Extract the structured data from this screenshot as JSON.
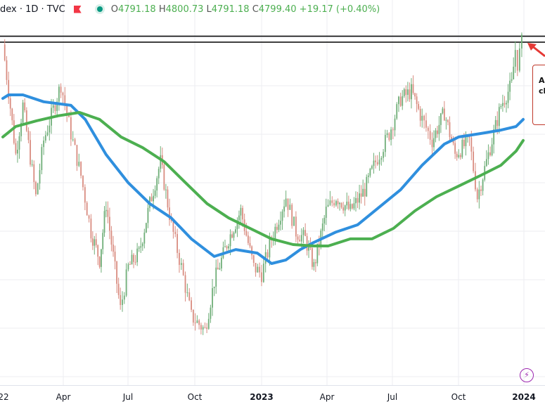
{
  "header": {
    "title": "dex · 1D · TVC",
    "open_label": "O",
    "open": "4791.18",
    "high_label": "H",
    "high": "4800.73",
    "low_label": "L",
    "low": "4791.18",
    "close_label": "C",
    "close": "4799.40",
    "change": "+19.17 (+0.40%)"
  },
  "annotation": {
    "line1": "Al",
    "line2": "cl"
  },
  "colors": {
    "up": "#6fae78",
    "down": "#d98c80",
    "ma_blue": "#2f8fde",
    "ma_green": "#4caf50",
    "annotation": "#c0392b",
    "level_line": "#000000"
  },
  "chart_data": {
    "type": "line",
    "title": "",
    "xlabel": "",
    "ylabel": "",
    "grid": true,
    "x_tick_labels": [
      "22",
      "Apr",
      "Jul",
      "Oct",
      "2023",
      "Apr",
      "Jul",
      "Oct",
      "2024"
    ],
    "ylim": [
      3400,
      4830
    ],
    "horizontal_levels": [
      4800,
      4825
    ],
    "series": [
      {
        "kind": "candles-close",
        "color": "#6fae78",
        "points": [
          [
            "2022-01-03",
            4790
          ],
          [
            "2022-01-11",
            4593
          ],
          [
            "2022-01-21",
            4327
          ],
          [
            "2022-01-31",
            4534
          ],
          [
            "2022-02-18",
            4149
          ],
          [
            "2022-03-01",
            4386
          ],
          [
            "2022-03-25",
            4622
          ],
          [
            "2022-04-08",
            4415
          ],
          [
            "2022-04-22",
            4238
          ],
          [
            "2022-05-06",
            4001
          ],
          [
            "2022-05-18",
            3883
          ],
          [
            "2022-05-27",
            4120
          ],
          [
            "2022-06-16",
            3676
          ],
          [
            "2022-06-27",
            3853
          ],
          [
            "2022-07-12",
            3912
          ],
          [
            "2022-07-27",
            4120
          ],
          [
            "2022-08-11",
            4297
          ],
          [
            "2022-08-26",
            4031
          ],
          [
            "2022-09-09",
            3853
          ],
          [
            "2022-09-23",
            3646
          ],
          [
            "2022-10-12",
            3587
          ],
          [
            "2022-10-25",
            3794
          ],
          [
            "2022-11-14",
            3972
          ],
          [
            "2022-12-01",
            4090
          ],
          [
            "2022-12-19",
            3853
          ],
          [
            "2022-12-30",
            3824
          ],
          [
            "2023-01-13",
            3972
          ],
          [
            "2023-02-02",
            4149
          ],
          [
            "2023-02-16",
            4001
          ],
          [
            "2023-03-01",
            3972
          ],
          [
            "2023-03-13",
            3853
          ],
          [
            "2023-03-30",
            4090
          ],
          [
            "2023-04-13",
            4149
          ],
          [
            "2023-05-03",
            4090
          ],
          [
            "2023-05-23",
            4179
          ],
          [
            "2023-06-07",
            4297
          ],
          [
            "2023-06-26",
            4415
          ],
          [
            "2023-07-12",
            4562
          ],
          [
            "2023-07-27",
            4593
          ],
          [
            "2023-08-11",
            4475
          ],
          [
            "2023-08-25",
            4386
          ],
          [
            "2023-09-11",
            4504
          ],
          [
            "2023-09-26",
            4327
          ],
          [
            "2023-10-16",
            4386
          ],
          [
            "2023-10-27",
            4149
          ],
          [
            "2023-11-14",
            4357
          ],
          [
            "2023-11-29",
            4534
          ],
          [
            "2023-12-14",
            4622
          ],
          [
            "2023-12-19",
            4770
          ],
          [
            "2023-12-22",
            4710
          ],
          [
            "2023-12-28",
            4799
          ]
        ]
      },
      {
        "kind": "ma",
        "color": "#2f8fde",
        "points": [
          [
            "2022-01-03",
            4563
          ],
          [
            "2022-01-11",
            4578
          ],
          [
            "2022-01-31",
            4578
          ],
          [
            "2022-03-01",
            4549
          ],
          [
            "2022-04-08",
            4534
          ],
          [
            "2022-04-28",
            4475
          ],
          [
            "2022-05-27",
            4327
          ],
          [
            "2022-06-27",
            4208
          ],
          [
            "2022-07-27",
            4120
          ],
          [
            "2022-08-26",
            4060
          ],
          [
            "2022-09-23",
            3972
          ],
          [
            "2022-10-25",
            3898
          ],
          [
            "2022-11-24",
            3927
          ],
          [
            "2022-12-24",
            3912
          ],
          [
            "2023-01-13",
            3868
          ],
          [
            "2023-02-02",
            3883
          ],
          [
            "2023-02-22",
            3927
          ],
          [
            "2023-03-13",
            3957
          ],
          [
            "2023-04-13",
            4001
          ],
          [
            "2023-05-13",
            4031
          ],
          [
            "2023-06-12",
            4105
          ],
          [
            "2023-07-12",
            4179
          ],
          [
            "2023-08-11",
            4282
          ],
          [
            "2023-09-11",
            4371
          ],
          [
            "2023-10-01",
            4401
          ],
          [
            "2023-10-31",
            4415
          ],
          [
            "2023-11-29",
            4430
          ],
          [
            "2023-12-20",
            4445
          ],
          [
            "2023-12-30",
            4475
          ]
        ]
      },
      {
        "kind": "ma",
        "color": "#4caf50",
        "points": [
          [
            "2022-01-03",
            4401
          ],
          [
            "2022-01-21",
            4445
          ],
          [
            "2022-02-19",
            4469
          ],
          [
            "2022-03-21",
            4490
          ],
          [
            "2022-04-20",
            4504
          ],
          [
            "2022-05-18",
            4475
          ],
          [
            "2022-06-17",
            4401
          ],
          [
            "2022-07-17",
            4356
          ],
          [
            "2022-08-16",
            4297
          ],
          [
            "2022-09-15",
            4208
          ],
          [
            "2022-10-15",
            4120
          ],
          [
            "2022-11-14",
            4060
          ],
          [
            "2022-12-14",
            4016
          ],
          [
            "2023-01-13",
            3972
          ],
          [
            "2023-02-12",
            3948
          ],
          [
            "2023-03-13",
            3942
          ],
          [
            "2023-04-02",
            3942
          ],
          [
            "2023-05-03",
            3972
          ],
          [
            "2023-06-02",
            3972
          ],
          [
            "2023-07-02",
            4016
          ],
          [
            "2023-08-01",
            4090
          ],
          [
            "2023-08-31",
            4149
          ],
          [
            "2023-10-01",
            4194
          ],
          [
            "2023-10-31",
            4238
          ],
          [
            "2023-11-29",
            4282
          ],
          [
            "2023-12-20",
            4341
          ],
          [
            "2023-12-30",
            4386
          ]
        ]
      }
    ]
  }
}
